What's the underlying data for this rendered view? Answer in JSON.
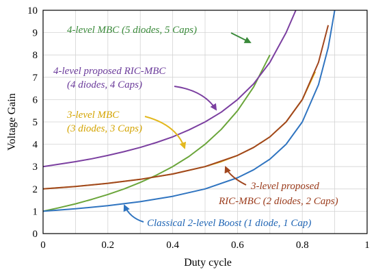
{
  "chart_data": {
    "type": "line",
    "xlabel": "Duty cycle",
    "ylabel": "Voltage Gain",
    "xlim": [
      0,
      1
    ],
    "ylim": [
      0,
      10
    ],
    "xticks": [
      "0",
      "0.2",
      "0.4",
      "0.6",
      "0.8",
      "1"
    ],
    "yticks": [
      "0",
      "1",
      "2",
      "3",
      "4",
      "5",
      "6",
      "7",
      "8",
      "9",
      "10"
    ],
    "grid": true,
    "legend": "none",
    "series": [
      {
        "formula": "(1+2D)/(1-D)",
        "color": "#6aa53a",
        "x": [
          0,
          0.05,
          0.1,
          0.15,
          0.2,
          0.25,
          0.3,
          0.35,
          0.4,
          0.45,
          0.5,
          0.55,
          0.6,
          0.65,
          0.7
        ],
        "values": [
          1.0,
          1.16,
          1.33,
          1.53,
          1.75,
          2.0,
          2.29,
          2.62,
          3.0,
          3.45,
          4.0,
          4.67,
          5.5,
          6.57,
          8.0
        ]
      },
      {
        "formula": "(3-D)/(1-D)",
        "color": "#7b3fa0",
        "x": [
          0,
          0.05,
          0.1,
          0.15,
          0.2,
          0.25,
          0.3,
          0.35,
          0.4,
          0.45,
          0.5,
          0.55,
          0.6,
          0.65,
          0.7,
          0.75,
          0.78
        ],
        "values": [
          3.0,
          3.11,
          3.22,
          3.35,
          3.5,
          3.67,
          3.86,
          4.08,
          4.33,
          4.64,
          5.0,
          5.44,
          6.0,
          6.71,
          7.67,
          9.0,
          10.09
        ]
      },
      {
        "formula": "(2-D)/(1-D)",
        "color": "#e3b81e",
        "x": [
          0,
          0.1,
          0.2,
          0.3,
          0.4,
          0.5,
          0.55,
          0.6,
          0.65,
          0.7,
          0.75,
          0.8,
          0.84
        ],
        "values": [
          2.0,
          2.11,
          2.25,
          2.43,
          2.67,
          3.0,
          3.22,
          3.5,
          3.86,
          4.33,
          5.0,
          6.0,
          7.25
        ]
      },
      {
        "formula": "(2-D)/(1-D)",
        "color": "#a0461e",
        "x": [
          0,
          0.1,
          0.2,
          0.3,
          0.4,
          0.5,
          0.6,
          0.65,
          0.7,
          0.75,
          0.8,
          0.85,
          0.88
        ],
        "values": [
          2.0,
          2.11,
          2.25,
          2.43,
          2.67,
          3.0,
          3.5,
          3.86,
          4.33,
          5.0,
          6.0,
          7.67,
          9.33
        ]
      },
      {
        "formula": "1/(1-D)",
        "color": "#2f74c0",
        "x": [
          0,
          0.1,
          0.2,
          0.3,
          0.4,
          0.5,
          0.6,
          0.65,
          0.7,
          0.75,
          0.8,
          0.85,
          0.88,
          0.9
        ],
        "values": [
          1.0,
          1.11,
          1.25,
          1.43,
          1.67,
          2.0,
          2.5,
          2.86,
          3.33,
          4.0,
          5.0,
          6.67,
          8.33,
          10.0
        ]
      }
    ],
    "annotations": [
      {
        "line1": "4-level MBC (5 diodes, 5 Caps)",
        "line2": "",
        "color": "#3a8a3a"
      },
      {
        "line1": "4-level proposed RIC-MBC",
        "line2": "(4 diodes, 4 Caps)",
        "color": "#6a3a9a"
      },
      {
        "line1": "3-level MBC",
        "line2": "(3 diodes, 3 Caps)",
        "color": "#d4a400"
      },
      {
        "line1": "3-level proposed",
        "line2": "RIC-MBC (2 diodes, 2 Caps)",
        "color": "#9a3a1a"
      },
      {
        "line1": "Classical 2-level Boost (1 diode, 1 Cap)",
        "line2": "",
        "color": "#1e64b4"
      }
    ]
  }
}
